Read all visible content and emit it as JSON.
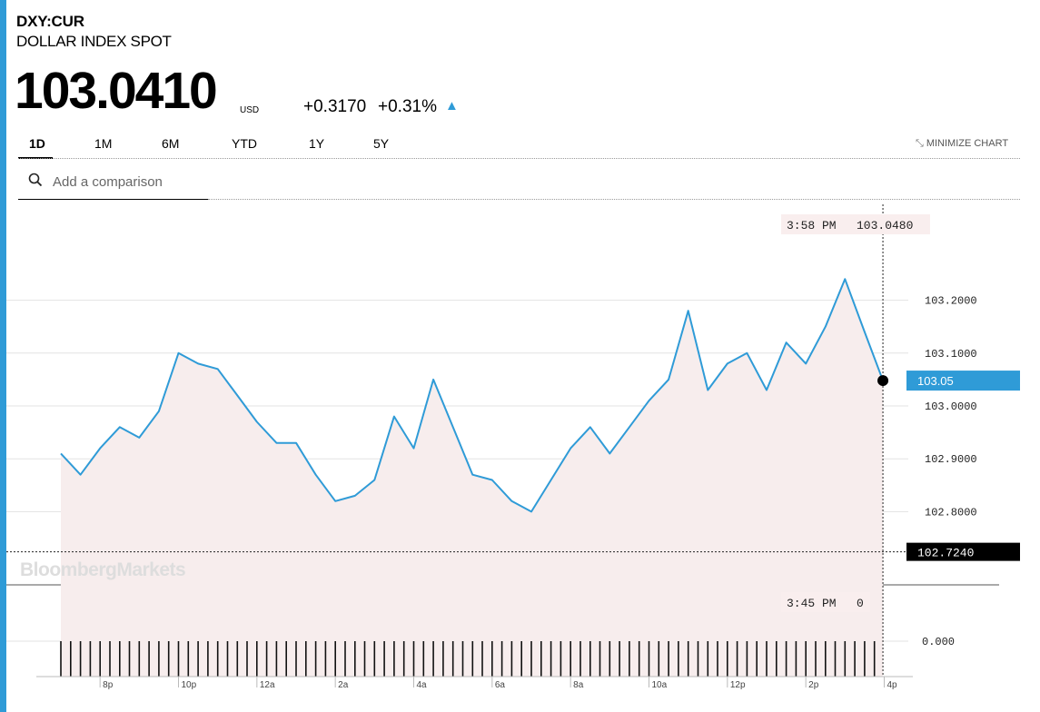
{
  "header": {
    "ticker": "DXY:CUR",
    "name": "DOLLAR INDEX SPOT",
    "price": "103.0410",
    "currency": "USD",
    "change": "+0.3170",
    "change_pct": "+0.31%",
    "direction_icon": "up-triangle-icon"
  },
  "tabs": [
    {
      "label": "1D",
      "active": true
    },
    {
      "label": "1M",
      "active": false
    },
    {
      "label": "6M",
      "active": false
    },
    {
      "label": "YTD",
      "active": false
    },
    {
      "label": "1Y",
      "active": false
    },
    {
      "label": "5Y",
      "active": false
    }
  ],
  "minimize_label": "MINIMIZE CHART",
  "search": {
    "placeholder": "Add a comparison"
  },
  "watermark": "BloombergMarkets",
  "colors": {
    "accent": "#2f9bd7",
    "area_fill": "#f7eded",
    "label_bg": "#f9eeee",
    "last_price_bg": "#2f9bd7"
  },
  "chart_data": {
    "type": "line",
    "series": [
      {
        "x": [
          "19:00",
          "19:30",
          "20:00",
          "20:30",
          "21:00",
          "21:30",
          "22:00",
          "22:30",
          "23:00",
          "23:30",
          "00:00",
          "00:30",
          "01:00",
          "01:30",
          "02:00",
          "02:30",
          "03:00",
          "03:30",
          "04:00",
          "04:30",
          "05:00",
          "05:30",
          "06:00",
          "06:30",
          "07:00",
          "07:30",
          "08:00",
          "08:30",
          "09:00",
          "09:30",
          "10:00",
          "10:30",
          "11:00",
          "11:30",
          "12:00",
          "12:30",
          "13:00",
          "13:30",
          "14:00",
          "14:30",
          "15:00",
          "15:30",
          "15:58"
        ],
        "values": [
          102.91,
          102.87,
          102.92,
          102.96,
          102.94,
          102.99,
          103.1,
          103.08,
          103.07,
          103.02,
          102.97,
          102.93,
          102.93,
          102.87,
          102.82,
          102.83,
          102.86,
          102.98,
          102.92,
          103.05,
          102.96,
          102.87,
          102.86,
          102.82,
          102.8,
          102.86,
          102.92,
          102.96,
          102.91,
          102.96,
          103.01,
          103.05,
          103.18,
          103.03,
          103.08,
          103.1,
          103.03,
          103.12,
          103.08,
          103.15,
          103.24,
          103.14,
          103.048
        ]
      }
    ],
    "y_ticks": [
      "103.2000",
      "103.1000",
      "103.0000",
      "102.9000",
      "102.8000"
    ],
    "ylim": [
      102.7,
      103.3
    ],
    "x_ticks": [
      "8p",
      "10p",
      "12a",
      "2a",
      "4a",
      "6a",
      "8a",
      "10a",
      "12p",
      "2p",
      "4p"
    ],
    "previous_close": "102.7240",
    "last_value": "103.05",
    "crosshair": {
      "time": "3:58 PM",
      "value": "103.0480"
    },
    "volume": {
      "crosshair_time": "3:45 PM",
      "crosshair_value": "0",
      "y_tick": "0.000"
    }
  }
}
